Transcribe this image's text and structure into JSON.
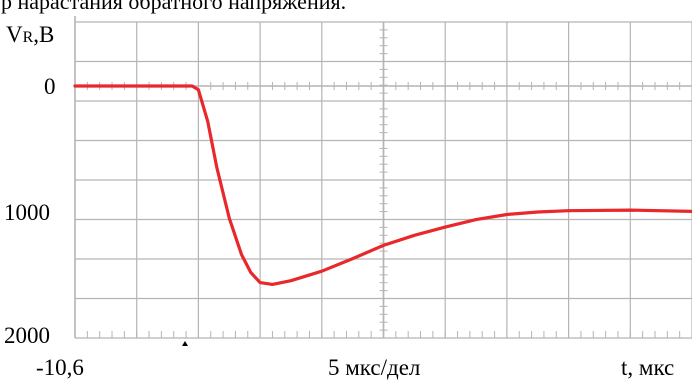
{
  "header_fragment": "р нарастания обратного напряжения.",
  "chart_data": {
    "type": "line",
    "ylabel": "VR,B",
    "ylabel_main": "V",
    "ylabel_sub": "R",
    "ylabel_unit": ",B",
    "xlabel": "t, мкс",
    "x_start_label": "-10,6",
    "x_scale_label": "5 мкс/дел",
    "y_ticks": [
      {
        "value": 0,
        "label": "0"
      },
      {
        "value": 1000,
        "label": "1000"
      },
      {
        "value": 2000,
        "label": "2000"
      }
    ],
    "ylim": [
      2000,
      0
    ],
    "y_inverted": true,
    "x_divisions": 10,
    "y_divisions": 8,
    "grid": true,
    "line_color": "#e8282a",
    "grid_color": "#b4b4b4",
    "series": [
      {
        "x": [
          0,
          0.5,
          1.0,
          1.5,
          1.9,
          2.0,
          2.15,
          2.3,
          2.5,
          2.7,
          2.85,
          3.0,
          3.2,
          3.5,
          4.0,
          4.5,
          5.0,
          5.5,
          6.0,
          6.5,
          7.0,
          7.5,
          8.0,
          9.0,
          10.0
        ],
        "y": [
          0,
          0,
          0,
          0,
          0,
          30,
          280,
          650,
          1050,
          1340,
          1480,
          1560,
          1575,
          1545,
          1470,
          1370,
          1265,
          1185,
          1120,
          1060,
          1020,
          1000,
          990,
          985,
          995
        ]
      }
    ]
  }
}
